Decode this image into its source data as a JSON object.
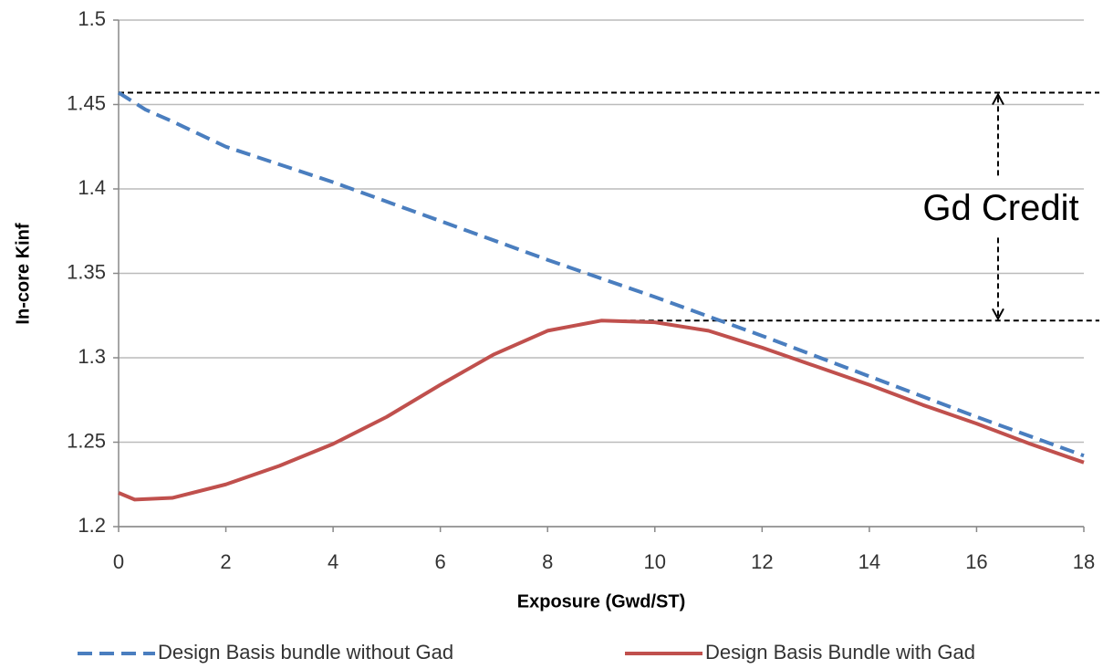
{
  "chart_data": {
    "type": "line",
    "x_label": "Exposure (Gwd/ST)",
    "y_label": "In-core Kinf",
    "xlim": [
      0,
      18
    ],
    "xticks": [
      0,
      2,
      4,
      6,
      8,
      10,
      12,
      14,
      16,
      18
    ],
    "ylim": [
      1.2,
      1.5
    ],
    "yticks": [
      1.2,
      1.25,
      1.3,
      1.35,
      1.4,
      1.45,
      1.5
    ],
    "grid": true,
    "legend": "bottom",
    "series": [
      {
        "name": "Design Basis bundle without Gad",
        "color": "#4a7ebf",
        "dashed": true,
        "x": [
          0,
          0.5,
          1,
          2,
          4,
          6,
          8,
          10,
          12,
          14,
          16,
          18
        ],
        "values": [
          1.457,
          1.447,
          1.44,
          1.425,
          1.404,
          1.381,
          1.358,
          1.336,
          1.313,
          1.289,
          1.265,
          1.242
        ]
      },
      {
        "name": "Design Basis Bundle with Gad",
        "color": "#c0504d",
        "dashed": false,
        "x": [
          0,
          0.3,
          1,
          2,
          3,
          4,
          5,
          6,
          7,
          8,
          9,
          10,
          11,
          12,
          13,
          14,
          15,
          16,
          17,
          18
        ],
        "values": [
          1.22,
          1.216,
          1.217,
          1.225,
          1.236,
          1.249,
          1.265,
          1.284,
          1.302,
          1.316,
          1.322,
          1.321,
          1.316,
          1.306,
          1.295,
          1.284,
          1.272,
          1.261,
          1.249,
          1.238
        ]
      }
    ],
    "reference_lines": [
      {
        "y": 1.457,
        "x_start": 0
      },
      {
        "y": 1.322,
        "x_start": 9.2
      }
    ],
    "annotation": {
      "text": "Gd Credit",
      "x": 16.4
    }
  }
}
